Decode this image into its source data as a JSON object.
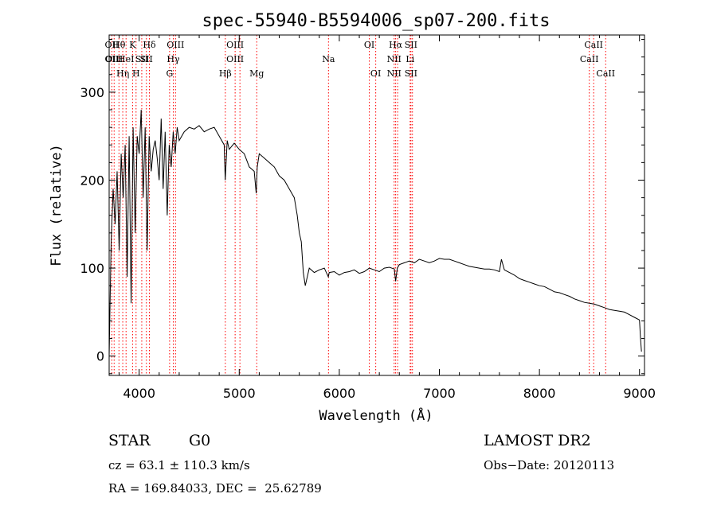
{
  "chart_data": {
    "type": "line",
    "title": "spec-55940-B5594006_sp07-200.fits",
    "xlabel": "Wavelength (Å)",
    "ylabel": "Flux (relative)",
    "xlim": [
      3700,
      9050
    ],
    "ylim": [
      -22,
      365
    ],
    "xticks": [
      4000,
      5000,
      6000,
      7000,
      8000,
      9000
    ],
    "yticks": [
      0,
      100,
      200,
      300
    ],
    "grid": false,
    "line_color": "#000000",
    "marker_color": "#ff0000",
    "series": [
      {
        "x": [
          3700,
          3720,
          3740,
          3760,
          3780,
          3800,
          3820,
          3840,
          3860,
          3880,
          3900,
          3920,
          3940,
          3960,
          3980,
          4000,
          4020,
          4040,
          4060,
          4080,
          4100,
          4120,
          4140,
          4160,
          4180,
          4200,
          4220,
          4240,
          4260,
          4280,
          4300,
          4320,
          4340,
          4360,
          4380,
          4400,
          4450,
          4500,
          4550,
          4600,
          4650,
          4700,
          4750,
          4800,
          4850,
          4860,
          4880,
          4900,
          4950,
          5000,
          5050,
          5100,
          5150,
          5170,
          5180,
          5200,
          5250,
          5300,
          5350,
          5400,
          5450,
          5500,
          5550,
          5580,
          5600,
          5620,
          5640,
          5660,
          5700,
          5750,
          5800,
          5850,
          5890,
          5900,
          5950,
          6000,
          6050,
          6100,
          6150,
          6200,
          6250,
          6300,
          6350,
          6400,
          6450,
          6500,
          6550,
          6563,
          6580,
          6600,
          6650,
          6700,
          6750,
          6800,
          6850,
          6900,
          6950,
          7000,
          7050,
          7100,
          7150,
          7200,
          7250,
          7300,
          7350,
          7400,
          7450,
          7500,
          7550,
          7600,
          7620,
          7650,
          7700,
          7750,
          7800,
          7850,
          7900,
          7950,
          8000,
          8050,
          8100,
          8150,
          8200,
          8250,
          8300,
          8350,
          8400,
          8450,
          8500,
          8550,
          8600,
          8650,
          8700,
          8750,
          8800,
          8850,
          8900,
          8950,
          9000,
          9010,
          9020
        ],
        "y": [
          0,
          130,
          190,
          150,
          210,
          120,
          230,
          180,
          240,
          90,
          250,
          60,
          260,
          140,
          250,
          230,
          280,
          180,
          260,
          120,
          250,
          210,
          235,
          245,
          225,
          200,
          270,
          190,
          255,
          160,
          240,
          215,
          255,
          230,
          260,
          245,
          255,
          260,
          258,
          262,
          255,
          258,
          260,
          250,
          240,
          200,
          245,
          235,
          242,
          235,
          230,
          215,
          210,
          185,
          215,
          230,
          225,
          220,
          215,
          205,
          200,
          190,
          180,
          160,
          140,
          130,
          95,
          80,
          100,
          95,
          98,
          100,
          90,
          95,
          96,
          92,
          95,
          96,
          98,
          94,
          96,
          100,
          98,
          96,
          100,
          101,
          99,
          85,
          100,
          104,
          106,
          108,
          106,
          110,
          108,
          106,
          108,
          111,
          110,
          110,
          108,
          106,
          104,
          102,
          101,
          100,
          99,
          99,
          98,
          96,
          110,
          98,
          95,
          92,
          88,
          86,
          84,
          82,
          80,
          79,
          76,
          73,
          72,
          70,
          68,
          65,
          63,
          61,
          60,
          59,
          57,
          55,
          53,
          52,
          51,
          50,
          47,
          44,
          41,
          20,
          5
        ]
      }
    ],
    "lines": [
      {
        "x": 3727,
        "labels": [
          "OII",
          "OII"
        ]
      },
      {
        "x": 3750,
        "labels": [
          "",
          "OIII"
        ]
      },
      {
        "x": 3798,
        "labels": [
          "Hθ",
          "",
          ""
        ]
      },
      {
        "x": 3836,
        "labels": [
          "",
          "",
          "Hη"
        ]
      },
      {
        "x": 3869,
        "labels": [
          "",
          "HeI"
        ]
      },
      {
        "x": 3934,
        "labels": [
          "K",
          "",
          ""
        ]
      },
      {
        "x": 3969,
        "labels": [
          "",
          "",
          "H"
        ]
      },
      {
        "x": 4026,
        "labels": [
          "",
          "SII",
          ""
        ]
      },
      {
        "x": 4072,
        "labels": [
          "",
          "SII",
          ""
        ]
      },
      {
        "x": 4102,
        "labels": [
          "Hδ",
          "",
          ""
        ]
      },
      {
        "x": 4304,
        "labels": [
          "",
          "",
          "G"
        ]
      },
      {
        "x": 4341,
        "labels": [
          "",
          "Hγ",
          ""
        ]
      },
      {
        "x": 4363,
        "labels": [
          "OIII",
          "",
          ""
        ]
      },
      {
        "x": 4861,
        "labels": [
          "",
          "",
          "Hβ"
        ]
      },
      {
        "x": 4959,
        "labels": [
          "OIII",
          "OIII",
          ""
        ]
      },
      {
        "x": 5007,
        "labels": [
          "",
          "",
          ""
        ]
      },
      {
        "x": 5175,
        "labels": [
          "",
          "",
          "Mg"
        ]
      },
      {
        "x": 5892,
        "labels": [
          "",
          "Na",
          ""
        ]
      },
      {
        "x": 6300,
        "labels": [
          "OI",
          "",
          ""
        ]
      },
      {
        "x": 6364,
        "labels": [
          "",
          "",
          "OI"
        ]
      },
      {
        "x": 6548,
        "labels": [
          "",
          "NII",
          "NII"
        ]
      },
      {
        "x": 6563,
        "labels": [
          "Hα",
          "",
          ""
        ]
      },
      {
        "x": 6583,
        "labels": [
          "",
          "",
          ""
        ]
      },
      {
        "x": 6708,
        "labels": [
          "",
          "Li",
          ""
        ]
      },
      {
        "x": 6716,
        "labels": [
          "SII",
          "",
          "SII"
        ]
      },
      {
        "x": 6731,
        "labels": [
          "",
          "",
          ""
        ]
      },
      {
        "x": 8498,
        "labels": [
          "",
          "CaII",
          ""
        ]
      },
      {
        "x": 8542,
        "labels": [
          "CaII",
          "",
          ""
        ]
      },
      {
        "x": 8662,
        "labels": [
          "",
          "",
          "CaII"
        ]
      }
    ]
  },
  "info": {
    "object_class": "STAR",
    "subclass": "G0",
    "survey": "LAMOST DR2",
    "redshift": "cz = 63.1 ± 110.3 km/s",
    "obs_date": "Obs−Date: 20120113",
    "coords": "RA = 169.84033, DEC =  25.62789"
  }
}
